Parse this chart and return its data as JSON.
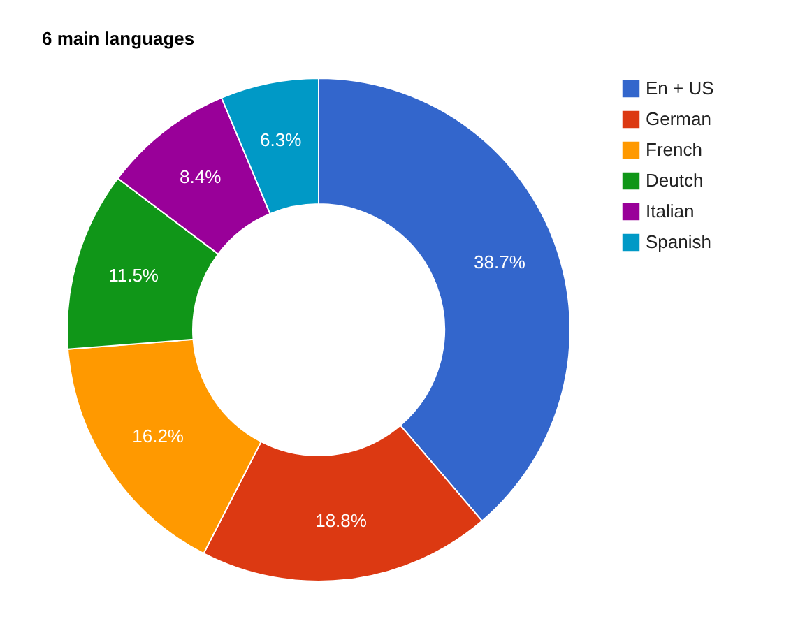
{
  "chart_data": {
    "type": "donut",
    "title": "6 main languages",
    "categories": [
      "En + US",
      "German",
      "French",
      "Deutch",
      "Italian",
      "Spanish"
    ],
    "values": [
      38.7,
      18.8,
      16.2,
      11.5,
      8.4,
      6.3
    ],
    "colors": [
      "#3366cc",
      "#dc3912",
      "#ff9900",
      "#109618",
      "#990099",
      "#0099c6"
    ],
    "value_labels": [
      "38.7%",
      "18.8%",
      "16.2%",
      "11.5%",
      "8.4%",
      "6.3%"
    ],
    "legend": "top right"
  }
}
